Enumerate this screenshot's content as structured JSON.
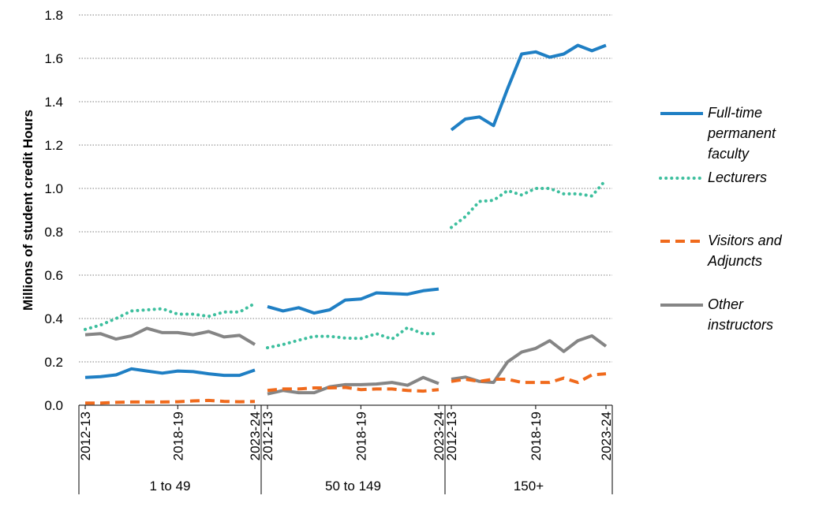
{
  "chart_data": {
    "type": "line",
    "ylabel": "Millions of student credit Hours",
    "ylim": [
      0,
      1.8
    ],
    "yticks": [
      "0.0",
      "0.2",
      "0.4",
      "0.6",
      "0.8",
      "1.0",
      "1.2",
      "1.4",
      "1.6",
      "1.8"
    ],
    "grid": true,
    "legend_position": "right",
    "groups": [
      {
        "name": "1 to 49",
        "x": [
          "2012-13",
          "2013-14",
          "2014-15",
          "2015-16",
          "2016-17",
          "2017-18",
          "2018-19",
          "2019-20",
          "2020-21",
          "2021-22",
          "2022-23",
          "2023-24"
        ],
        "tick_labels": [
          "2012-13",
          "2018-19",
          "2023-24"
        ],
        "series": [
          {
            "name": "Full-time permanent faculty",
            "values": [
              0.128,
              0.132,
              0.14,
              0.168,
              0.158,
              0.148,
              0.158,
              0.155,
              0.145,
              0.138,
              0.138,
              0.162
            ]
          },
          {
            "name": "Lecturers",
            "values": [
              0.35,
              0.37,
              0.4,
              0.435,
              0.44,
              0.445,
              0.42,
              0.42,
              0.41,
              0.43,
              0.43,
              0.47
            ]
          },
          {
            "name": "Visitors and Adjuncts",
            "values": [
              0.01,
              0.01,
              0.013,
              0.015,
              0.015,
              0.015,
              0.016,
              0.02,
              0.022,
              0.018,
              0.016,
              0.017
            ]
          },
          {
            "name": "Other instructors",
            "values": [
              0.325,
              0.33,
              0.305,
              0.32,
              0.355,
              0.335,
              0.335,
              0.325,
              0.34,
              0.315,
              0.322,
              0.28
            ]
          }
        ]
      },
      {
        "name": "50 to 149",
        "x": [
          "2012-13",
          "2013-14",
          "2014-15",
          "2015-16",
          "2016-17",
          "2017-18",
          "2018-19",
          "2019-20",
          "2020-21",
          "2021-22",
          "2022-23",
          "2023-24"
        ],
        "tick_labels": [
          "2012-13",
          "2018-19",
          "2023-24"
        ],
        "series": [
          {
            "name": "Full-time permanent faculty",
            "values": [
              0.455,
              0.435,
              0.45,
              0.425,
              0.44,
              0.485,
              0.49,
              0.518,
              0.515,
              0.512,
              0.528,
              0.536
            ]
          },
          {
            "name": "Lecturers",
            "values": [
              0.265,
              0.28,
              0.3,
              0.318,
              0.318,
              0.31,
              0.308,
              0.33,
              0.305,
              0.358,
              0.33,
              0.33
            ]
          },
          {
            "name": "Visitors and Adjuncts",
            "values": [
              0.068,
              0.075,
              0.075,
              0.08,
              0.08,
              0.082,
              0.072,
              0.075,
              0.075,
              0.068,
              0.065,
              0.072
            ]
          },
          {
            "name": "Other instructors",
            "values": [
              0.052,
              0.068,
              0.058,
              0.058,
              0.085,
              0.095,
              0.095,
              0.098,
              0.105,
              0.092,
              0.128,
              0.1
            ]
          }
        ]
      },
      {
        "name": "150+",
        "x": [
          "2012-13",
          "2013-14",
          "2014-15",
          "2015-16",
          "2016-17",
          "2017-18",
          "2018-19",
          "2019-20",
          "2020-21",
          "2021-22",
          "2022-23",
          "2023-24"
        ],
        "tick_labels": [
          "2012-13",
          "2018-19",
          "2023-24"
        ],
        "series": [
          {
            "name": "Full-time permanent faculty",
            "values": [
              1.27,
              1.32,
              1.33,
              1.29,
              1.46,
              1.62,
              1.63,
              1.605,
              1.62,
              1.66,
              1.635,
              1.66
            ]
          },
          {
            "name": "Lecturers",
            "values": [
              0.82,
              0.87,
              0.94,
              0.945,
              0.99,
              0.97,
              1.0,
              1.0,
              0.975,
              0.975,
              0.965,
              1.04
            ]
          },
          {
            "name": "Visitors and Adjuncts",
            "values": [
              0.11,
              0.12,
              0.11,
              0.12,
              0.12,
              0.105,
              0.105,
              0.105,
              0.125,
              0.105,
              0.14,
              0.145
            ]
          },
          {
            "name": "Other instructors",
            "values": [
              0.12,
              0.13,
              0.11,
              0.105,
              0.2,
              0.245,
              0.262,
              0.298,
              0.248,
              0.298,
              0.32,
              0.272
            ]
          }
        ]
      }
    ],
    "legend": [
      {
        "label": "Full-time permanent faculty",
        "lines": [
          "Full-time",
          "permanent",
          "faculty"
        ],
        "color": "#1f7fc4",
        "style": "solid"
      },
      {
        "label": "Lecturers",
        "lines": [
          "Lecturers"
        ],
        "color": "#3dbf9e",
        "style": "dotted"
      },
      {
        "label": "Visitors and Adjuncts",
        "lines": [
          "Visitors and",
          "Adjuncts"
        ],
        "color": "#f06a1c",
        "style": "dashed"
      },
      {
        "label": "Other instructors",
        "lines": [
          "Other",
          "instructors"
        ],
        "color": "#858585",
        "style": "solid"
      }
    ]
  }
}
